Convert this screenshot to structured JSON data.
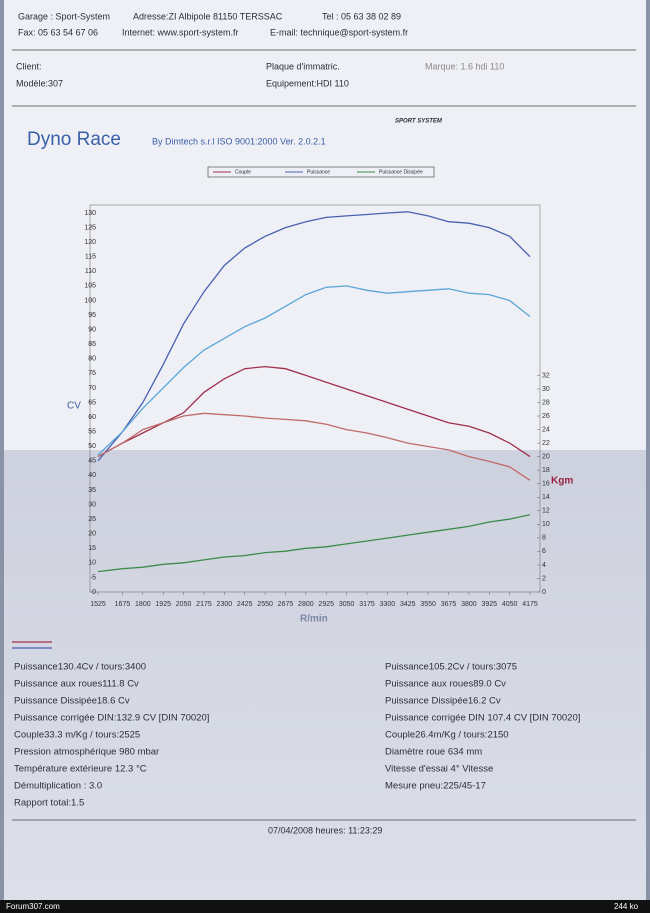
{
  "header": {
    "garage": "Garage : Sport-System",
    "address": "Adresse:ZI Albipole 81150 TERSSAC",
    "tel": "Tel : 05 63 38 02 89",
    "fax": "Fax: 05 63 54 67 06",
    "internet": "Internet: www.sport-system.fr",
    "email": "E-mail: technique@sport-system.fr"
  },
  "vehicle": {
    "client": "Client:",
    "plate": "Plaque d'immatric.",
    "brand": "Marque: 1.6 hdi 110",
    "model": "Modèle:307",
    "equipment": "Equipement:HDI 110"
  },
  "logo": "SPORT SYSTEM",
  "title": "Dyno Race",
  "subtitle": "By Dimtech s.r.l ISO 9001:2000 Ver. 2.0.2.1",
  "chart_data": {
    "type": "line",
    "y_label": "CV",
    "y2_label": "Kgm",
    "x_label": "R/min",
    "x": [
      1525,
      1675,
      1800,
      1925,
      2050,
      2175,
      2300,
      2425,
      2550,
      2675,
      2800,
      2925,
      3050,
      3175,
      3300,
      3425,
      3550,
      3675,
      3800,
      3925,
      4050,
      4175
    ],
    "xlim": [
      1525,
      4175
    ],
    "xticks": [
      1525,
      1675,
      1800,
      1925,
      2050,
      2175,
      2300,
      2425,
      2550,
      2675,
      2800,
      2925,
      3050,
      3175,
      3300,
      3425,
      3550,
      3675,
      3800,
      3925,
      4050,
      4175
    ],
    "ylim": [
      0,
      130
    ],
    "yticks": [
      0,
      5,
      10,
      15,
      20,
      25,
      30,
      35,
      40,
      45,
      50,
      55,
      60,
      65,
      70,
      75,
      80,
      85,
      90,
      95,
      100,
      105,
      110,
      115,
      120,
      125,
      130
    ],
    "y2lim": [
      0,
      56
    ],
    "y2ticks": [
      0,
      2,
      4,
      6,
      8,
      10,
      12,
      14,
      16,
      18,
      20,
      22,
      24,
      26,
      28,
      30,
      32
    ],
    "series": [
      {
        "name": "Couple",
        "color": "#a0304a",
        "axis": "y2",
        "values": [
          20,
          22,
          23.5,
          25,
          26.5,
          29.5,
          31.5,
          33,
          33.3,
          33,
          32,
          31,
          30,
          29,
          28,
          27,
          26,
          25,
          24.5,
          23.5,
          22,
          20
        ]
      },
      {
        "name": "Puissance",
        "color": "#4a5fb0",
        "values": [
          45,
          55,
          65,
          78,
          92,
          103,
          112,
          118,
          122,
          125,
          127,
          128.5,
          129,
          129.5,
          130,
          130.4,
          129,
          127,
          126.5,
          125,
          122,
          115
        ]
      },
      {
        "name": "Puissance Dissipée",
        "color": "#3c8a4a",
        "values": [
          7,
          8,
          8.5,
          9.5,
          10,
          11,
          12,
          12.5,
          13.5,
          14,
          15,
          15.5,
          16.5,
          17.5,
          18.5,
          19.5,
          20.5,
          21.5,
          22.5,
          24,
          25,
          26.5
        ]
      },
      {
        "color": "#c06a6a",
        "axis": "y2",
        "values": [
          20,
          22,
          24,
          25,
          26,
          26.4,
          26.2,
          26,
          25.7,
          25.5,
          25.3,
          24.8,
          24,
          23.5,
          22.8,
          22,
          21.5,
          21,
          20,
          19.3,
          18.5,
          16.5
        ]
      },
      {
        "color": "#5aa6d8",
        "values": [
          47,
          55,
          63,
          70,
          77,
          83,
          87,
          91,
          94,
          98,
          102,
          104.5,
          105,
          103.5,
          102.5,
          103,
          103.5,
          104,
          102.5,
          102,
          100,
          94.5
        ]
      }
    ]
  },
  "results": {
    "left": [
      "Puissance130.4Cv / tours:3400",
      "Puissance aux roues111.8 Cv",
      "Puissance Dissipée18.6 Cv",
      "Puissance corrigée DIN:132.9 CV [DIN 70020]",
      "Couple33.3 m/Kg / tours:2525",
      "Pression atmosphérique 980 mbar",
      "Température extérieure 12.3 °C",
      "Démultiplication : 3.0",
      "Rapport total:1.5"
    ],
    "right": [
      "Puissance105.2Cv / tours:3075",
      "Puissance aux roues89.0 Cv",
      "Puissance Dissipée16.2 Cv",
      "Puissance corrigée DIN 107.4 CV [DIN 70020]",
      "Couple26.4m/Kg / tours:2150",
      "Diamètre roue 634 mm",
      "Vitesse d'essai 4° Vitesse",
      "Mesure pneu:225/45-17"
    ]
  },
  "footer": "07/04/2008 heures: 11:23:29",
  "watermark": "Forum307.com",
  "filesize": "244 ko"
}
